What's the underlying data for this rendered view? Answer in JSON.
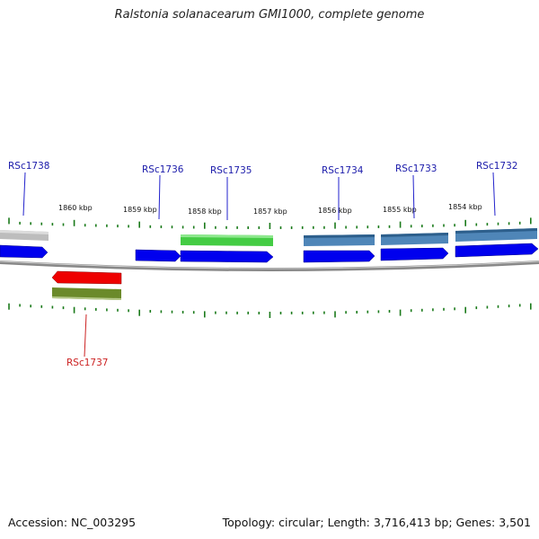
{
  "title": "Ralstonia solanacearum GMI1000, complete genome",
  "accession_text": "Accession: NC_003295",
  "topology_text": "Topology: circular; Length: 3,716,413 bp; Genes: 3,501",
  "colors": {
    "backbone": "#8a8a8a",
    "tick": "#1a7a1a",
    "cds_forward": "#0000ee",
    "cds_reverse": "#ee0000",
    "label_forward": "#1a1aaa",
    "label_reverse": "#cc2222",
    "feature_gray": "#bdbdbd",
    "feature_green": "#44cc44",
    "feature_steelblue": "#4f86b8",
    "feature_olive": "#6b8a2a"
  },
  "scale_labels": [
    "1860 kbp",
    "1859 kbp",
    "1858 kbp",
    "1857 kbp",
    "1856 kbp",
    "1855 kbp",
    "1854 kbp"
  ],
  "genes": [
    {
      "name": "RSc1738",
      "strand": "forward",
      "feature_color": "gray"
    },
    {
      "name": "RSc1736",
      "strand": "forward",
      "feature_color": "none"
    },
    {
      "name": "RSc1735",
      "strand": "forward",
      "feature_color": "green"
    },
    {
      "name": "RSc1734",
      "strand": "forward",
      "feature_color": "steelblue"
    },
    {
      "name": "RSc1733",
      "strand": "forward",
      "feature_color": "steelblue"
    },
    {
      "name": "RSc1732",
      "strand": "forward",
      "feature_color": "steelblue"
    },
    {
      "name": "RSc1737",
      "strand": "reverse",
      "feature_color": "olive"
    }
  ]
}
